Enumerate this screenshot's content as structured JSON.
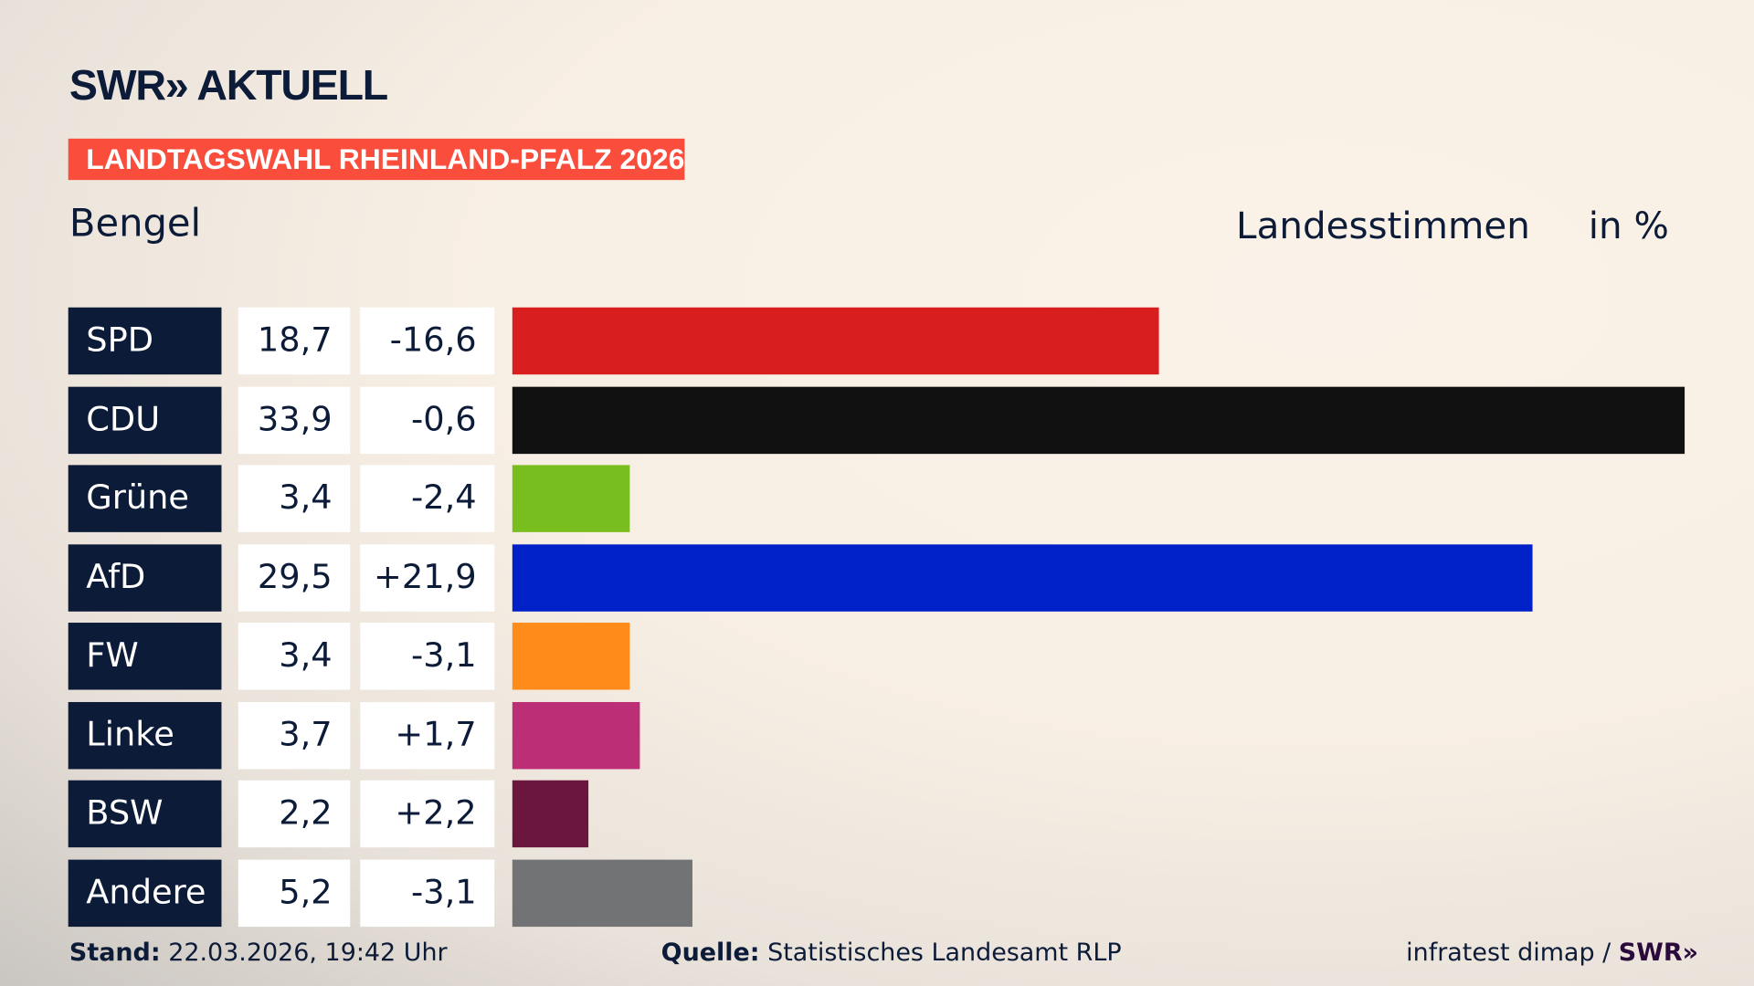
{
  "header": {
    "logo": "SWR» AKTUELL",
    "banner": "LANDTAGSWAHL RHEINLAND-PFALZ 2026",
    "region": "Bengel",
    "measure": "Landesstimmen",
    "unit": "in %"
  },
  "chart_data": {
    "type": "bar",
    "orientation": "horizontal",
    "categories": [
      "SPD",
      "CDU",
      "Grüne",
      "AfD",
      "FW",
      "Linke",
      "BSW",
      "Andere"
    ],
    "values": [
      18.7,
      33.9,
      3.4,
      29.5,
      3.4,
      3.7,
      2.2,
      5.2
    ],
    "value_labels": [
      "18,7",
      "33,9",
      "3,4",
      "29,5",
      "3,4",
      "3,7",
      "2,2",
      "5,2"
    ],
    "change_labels": [
      "-16,6",
      "-0,6",
      "-2,4",
      "+21,9",
      "-3,1",
      "+1,7",
      "+2,2",
      "-3,1"
    ],
    "changes": [
      -16.6,
      -0.6,
      -2.4,
      21.9,
      -3.1,
      1.7,
      2.2,
      -3.1
    ],
    "colors": [
      "#d81e1e",
      "#111111",
      "#78be1e",
      "#0021c8",
      "#ff8c1a",
      "#bc2f76",
      "#6b163e",
      "#727375"
    ],
    "xlim": [
      0,
      33.9
    ]
  },
  "footer": {
    "stand_label": "Stand:",
    "stand_value": "22.03.2026, 19:42 Uhr",
    "source_label": "Quelle:",
    "source_value": "Statistisches Landesamt RLP",
    "credit": "infratest dimap / ",
    "credit_logo": "SWR»"
  }
}
